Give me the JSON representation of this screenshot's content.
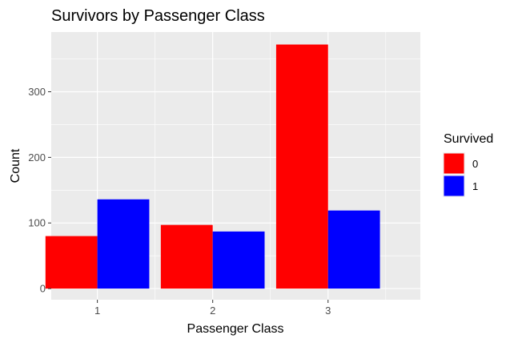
{
  "chart_data": {
    "type": "bar",
    "title": "Survivors by Passenger Class",
    "xlabel": "Passenger Class",
    "ylabel": "Count",
    "categories": [
      "1",
      "2",
      "3"
    ],
    "series": [
      {
        "name": "0",
        "values": [
          80,
          97,
          372
        ]
      },
      {
        "name": "1",
        "values": [
          136,
          87,
          119
        ]
      }
    ],
    "ylim": [
      -17,
      391
    ],
    "yticks": [
      0,
      100,
      200,
      300
    ],
    "grid": true,
    "legend": {
      "title": "Survived",
      "placement": "right"
    },
    "colors": {
      "series0": "#ff0000",
      "series1": "#0000ff",
      "panel": "#ebebeb",
      "grid": "#ffffff"
    }
  }
}
